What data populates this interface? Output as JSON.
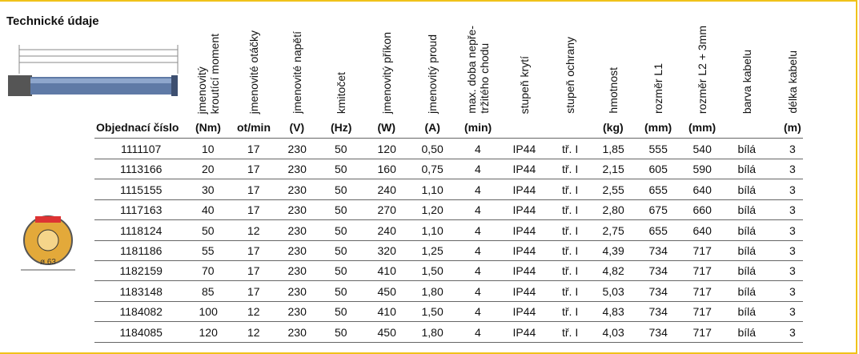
{
  "header": {
    "title": "Technické údaje"
  },
  "figure": {
    "diameter_label": "ø 63"
  },
  "table": {
    "first_column_header": "Objednací číslo",
    "columns": [
      {
        "name": [
          "jmenovitý",
          "kroutící moment"
        ],
        "unit": "(Nm)"
      },
      {
        "name": [
          "jmenovité otáčky"
        ],
        "unit": "ot/min"
      },
      {
        "name": [
          "jmenovité napětí"
        ],
        "unit": "(V)"
      },
      {
        "name": [
          "kmitočet"
        ],
        "unit": "(Hz)"
      },
      {
        "name": [
          "jmenovitý příkon"
        ],
        "unit": "(W)"
      },
      {
        "name": [
          "jmenovitý proud"
        ],
        "unit": "(A)"
      },
      {
        "name": [
          "max. doba nepře-",
          "tržitého chodu"
        ],
        "unit": "(min)"
      },
      {
        "name": [
          "stupeň krytí"
        ]
      },
      {
        "name": [
          "stupeň ochrany"
        ]
      },
      {
        "name": [
          "hmotnost"
        ],
        "unit": "(kg)"
      },
      {
        "name": [
          "rozměr L1"
        ],
        "unit": "(mm)"
      },
      {
        "name": [
          "rozměr L2 + 3mm"
        ],
        "unit": "(mm)"
      },
      {
        "name": [
          "barva kabelu"
        ]
      },
      {
        "name": [
          "délka kabelu"
        ],
        "unit": "(m)"
      }
    ],
    "rows": [
      [
        "1111107",
        "10",
        "17",
        "230",
        "50",
        "120",
        "0,50",
        "4",
        "IP44",
        "tř. I",
        "1,85",
        "555",
        "540",
        "bílá",
        "3"
      ],
      [
        "1113166",
        "20",
        "17",
        "230",
        "50",
        "160",
        "0,75",
        "4",
        "IP44",
        "tř. I",
        "2,15",
        "605",
        "590",
        "bílá",
        "3"
      ],
      [
        "1115155",
        "30",
        "17",
        "230",
        "50",
        "240",
        "1,10",
        "4",
        "IP44",
        "tř. I",
        "2,55",
        "655",
        "640",
        "bílá",
        "3"
      ],
      [
        "1117163",
        "40",
        "17",
        "230",
        "50",
        "270",
        "1,20",
        "4",
        "IP44",
        "tř. I",
        "2,80",
        "675",
        "660",
        "bílá",
        "3"
      ],
      [
        "1118124",
        "50",
        "12",
        "230",
        "50",
        "240",
        "1,10",
        "4",
        "IP44",
        "tř. I",
        "2,75",
        "655",
        "640",
        "bílá",
        "3"
      ],
      [
        "1181186",
        "55",
        "17",
        "230",
        "50",
        "320",
        "1,25",
        "4",
        "IP44",
        "tř. I",
        "4,39",
        "734",
        "717",
        "bílá",
        "3"
      ],
      [
        "1182159",
        "70",
        "17",
        "230",
        "50",
        "410",
        "1,50",
        "4",
        "IP44",
        "tř. I",
        "4,82",
        "734",
        "717",
        "bílá",
        "3"
      ],
      [
        "1183148",
        "85",
        "17",
        "230",
        "50",
        "450",
        "1,80",
        "4",
        "IP44",
        "tř. I",
        "5,03",
        "734",
        "717",
        "bílá",
        "3"
      ],
      [
        "1184082",
        "100",
        "12",
        "230",
        "50",
        "410",
        "1,50",
        "4",
        "IP44",
        "tř. I",
        "4,83",
        "734",
        "717",
        "bílá",
        "3"
      ],
      [
        "1184085",
        "120",
        "12",
        "230",
        "50",
        "450",
        "1,80",
        "4",
        "IP44",
        "tř. I",
        "4,03",
        "734",
        "717",
        "bílá",
        "3"
      ]
    ]
  }
}
